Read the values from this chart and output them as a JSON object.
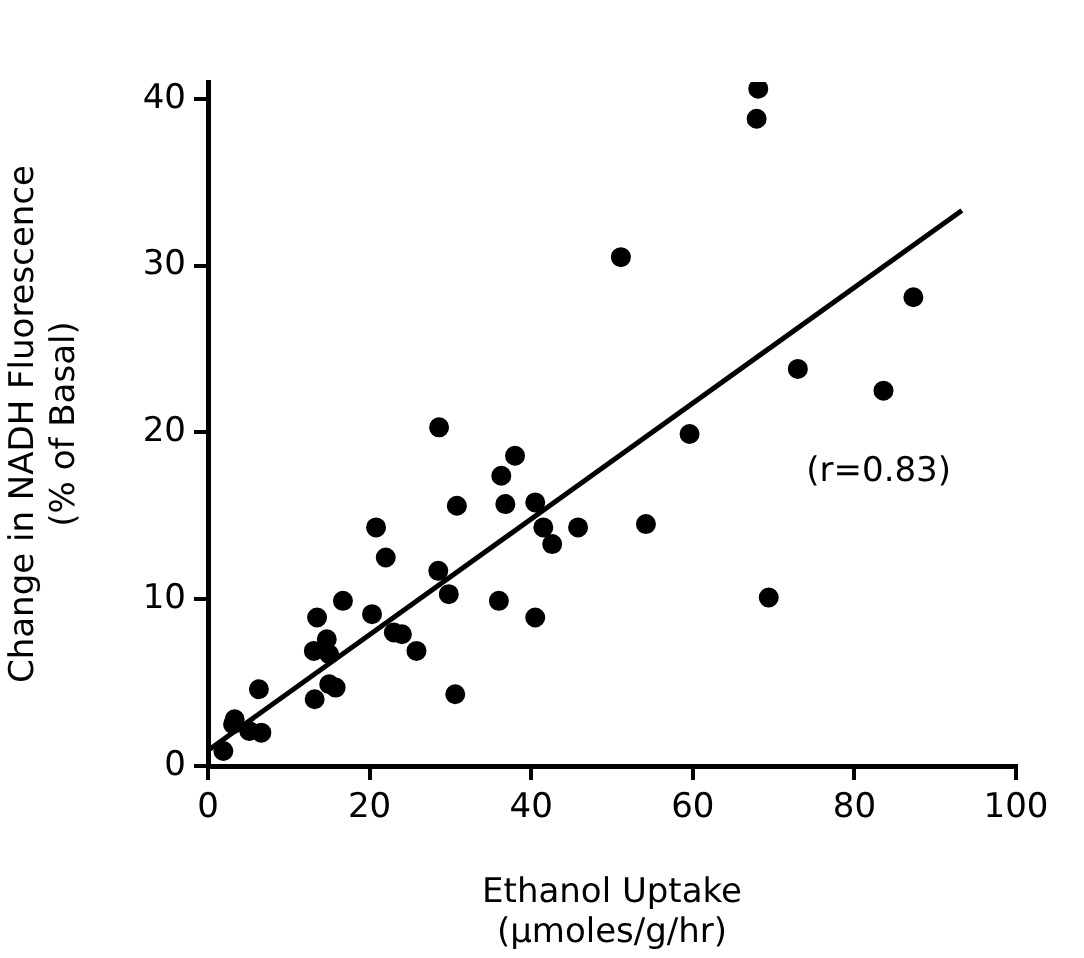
{
  "chart_data": {
    "type": "scatter",
    "xlabel": "Ethanol Uptake\n(µmoles/g/hr)",
    "ylabel": "Change in NADH Fluorescence\n(% of Basal)",
    "annotations": [
      "(r=0.83)"
    ],
    "xlim": [
      0,
      100
    ],
    "xticks": [
      0,
      20,
      40,
      60,
      80,
      100
    ],
    "ylim": [
      0,
      41
    ],
    "yticks": [
      0,
      10,
      20,
      30,
      40
    ],
    "grid": false,
    "legend": false,
    "marker": "circle",
    "series": [
      {
        "color": "#000000",
        "x": [
          1.9,
          3.3,
          3.1,
          5.1,
          6.6,
          6.3,
          13.2,
          13.5,
          13.1,
          14.7,
          15.0,
          15.0,
          15.8,
          16.7,
          20.3,
          20.8,
          22.0,
          23.0,
          24.0,
          25.8,
          28.5,
          28.6,
          29.8,
          30.6,
          30.8,
          36.0,
          36.3,
          36.8,
          38.0,
          40.5,
          40.5,
          41.5,
          42.6,
          45.8,
          51.1,
          54.2,
          59.6,
          67.9,
          68.1,
          69.4,
          73.0,
          83.6,
          87.3
        ],
        "values": [
          0.9,
          2.8,
          2.5,
          2.1,
          2.0,
          4.6,
          4.0,
          8.9,
          6.9,
          7.6,
          6.7,
          4.9,
          4.7,
          9.9,
          9.1,
          14.3,
          12.5,
          8.0,
          7.9,
          6.9,
          11.7,
          20.3,
          10.3,
          4.3,
          15.6,
          9.9,
          17.4,
          15.7,
          18.6,
          8.9,
          15.8,
          14.3,
          13.3,
          14.3,
          30.5,
          14.5,
          19.9,
          38.8,
          40.6,
          10.1,
          23.8,
          22.5,
          28.1
        ]
      },
      {
        "type": "line",
        "marker": "none",
        "color": "#000000",
        "x": [
          0.2,
          93.3
        ],
        "values": [
          1.0,
          33.3
        ]
      }
    ]
  }
}
